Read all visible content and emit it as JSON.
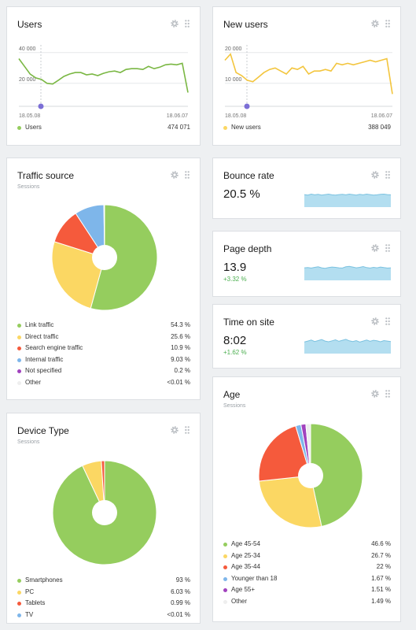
{
  "colors": {
    "green": "#95cd5e",
    "yellow": "#fbd763",
    "red": "#f55a3c",
    "blue": "#7eb6ea",
    "purple": "#a142be",
    "light": "#eeeeee",
    "lineGreen": "#7ab743",
    "lineYellow": "#f3c53d",
    "spark": "#b3def0",
    "sparkLine": "#7bc2e0"
  },
  "cards": {
    "users": {
      "title": "Users",
      "legend_label": "Users",
      "legend_value": "474 071"
    },
    "new_users": {
      "title": "New users",
      "legend_label": "New users",
      "legend_value": "388 049"
    },
    "traffic": {
      "title": "Traffic source",
      "subtitle": "Sessions"
    },
    "device": {
      "title": "Device Type",
      "subtitle": "Sessions"
    },
    "bounce": {
      "title": "Bounce rate",
      "value": "20.5 %"
    },
    "depth": {
      "title": "Page depth",
      "value": "13.9",
      "delta": "+3.32 %"
    },
    "time": {
      "title": "Time on site",
      "value": "8:02",
      "delta": "+1.62 %"
    },
    "age": {
      "title": "Age",
      "subtitle": "Sessions"
    }
  },
  "chart_data": [
    {
      "id": "users",
      "type": "line",
      "xlabel_start": "18.05.08",
      "xlabel_end": "18.06.07",
      "yticks": [
        "40 000",
        "20 000"
      ],
      "ytick_values": [
        40000,
        20000
      ],
      "ylim": [
        5000,
        45000
      ],
      "series": [
        {
          "name": "Users",
          "values": [
            36000,
            31000,
            26000,
            23500,
            22500,
            20000,
            19500,
            22000,
            24500,
            26000,
            27000,
            27000,
            25500,
            26000,
            25000,
            26500,
            27500,
            28000,
            27000,
            29000,
            29500,
            29500,
            29000,
            31000,
            29500,
            30500,
            32000,
            32500,
            32000,
            33000,
            14000
          ]
        }
      ]
    },
    {
      "id": "new_users",
      "type": "line",
      "xlabel_start": "18.05.08",
      "xlabel_end": "18.06.07",
      "yticks": [
        "20 000",
        "10 000"
      ],
      "ytick_values": [
        20000,
        10000
      ],
      "ylim": [
        2500,
        22500
      ],
      "series": [
        {
          "name": "New users",
          "values": [
            17500,
            19500,
            13500,
            12500,
            11000,
            10500,
            12000,
            13500,
            14500,
            15000,
            14000,
            13000,
            15000,
            14500,
            15500,
            13000,
            14000,
            14000,
            14500,
            14000,
            16500,
            16000,
            16500,
            16000,
            16500,
            17000,
            17500,
            17000,
            17500,
            18000,
            6500
          ]
        }
      ]
    },
    {
      "id": "traffic",
      "type": "pie",
      "slices": [
        {
          "label": "Link traffic",
          "value": 54.3,
          "display": "54.3 %",
          "color": "green"
        },
        {
          "label": "Direct traffic",
          "value": 25.6,
          "display": "25.6 %",
          "color": "yellow"
        },
        {
          "label": "Search engine traffic",
          "value": 10.9,
          "display": "10.9 %",
          "color": "red"
        },
        {
          "label": "Internal traffic",
          "value": 9.03,
          "display": "9.03 %",
          "color": "blue"
        },
        {
          "label": "Not specified",
          "value": 0.2,
          "display": "0.2 %",
          "color": "purple"
        },
        {
          "label": "Other",
          "value": 0.01,
          "display": "<0.01 %",
          "color": "light"
        }
      ]
    },
    {
      "id": "device",
      "type": "pie",
      "slices": [
        {
          "label": "Smartphones",
          "value": 93,
          "display": "93 %",
          "color": "green"
        },
        {
          "label": "PC",
          "value": 6.03,
          "display": "6.03 %",
          "color": "yellow"
        },
        {
          "label": "Tablets",
          "value": 0.99,
          "display": "0.99 %",
          "color": "red"
        },
        {
          "label": "TV",
          "value": 0.01,
          "display": "<0.01 %",
          "color": "blue"
        }
      ]
    },
    {
      "id": "age",
      "type": "pie",
      "slices": [
        {
          "label": "Age 45-54",
          "value": 46.6,
          "display": "46.6 %",
          "color": "green"
        },
        {
          "label": "Age 25-34",
          "value": 26.7,
          "display": "26.7 %",
          "color": "yellow"
        },
        {
          "label": "Age 35-44",
          "value": 22,
          "display": "22 %",
          "color": "red"
        },
        {
          "label": "Younger than 18",
          "value": 1.67,
          "display": "1.67 %",
          "color": "blue"
        },
        {
          "label": "Age 55+",
          "value": 1.51,
          "display": "1.51 %",
          "color": "purple"
        },
        {
          "label": "Other",
          "value": 1.49,
          "display": "1.49 %",
          "color": "light"
        }
      ]
    },
    {
      "id": "bounce",
      "type": "area",
      "values": [
        62,
        60,
        64,
        61,
        63,
        60,
        62,
        64,
        61,
        60,
        62,
        63,
        61,
        64,
        62,
        60,
        63,
        61,
        64,
        62,
        60,
        61,
        63,
        64,
        62,
        61
      ]
    },
    {
      "id": "depth",
      "type": "area",
      "values": [
        62,
        63,
        61,
        64,
        66,
        62,
        60,
        63,
        65,
        64,
        62,
        61,
        66,
        68,
        65,
        62,
        64,
        67,
        63,
        61,
        64,
        62,
        65,
        63,
        61,
        62
      ]
    },
    {
      "id": "time",
      "type": "area",
      "values": [
        58,
        62,
        66,
        60,
        64,
        68,
        62,
        59,
        63,
        67,
        61,
        65,
        69,
        63,
        60,
        64,
        58,
        62,
        66,
        61,
        65,
        63,
        59,
        64,
        62,
        60
      ]
    }
  ]
}
